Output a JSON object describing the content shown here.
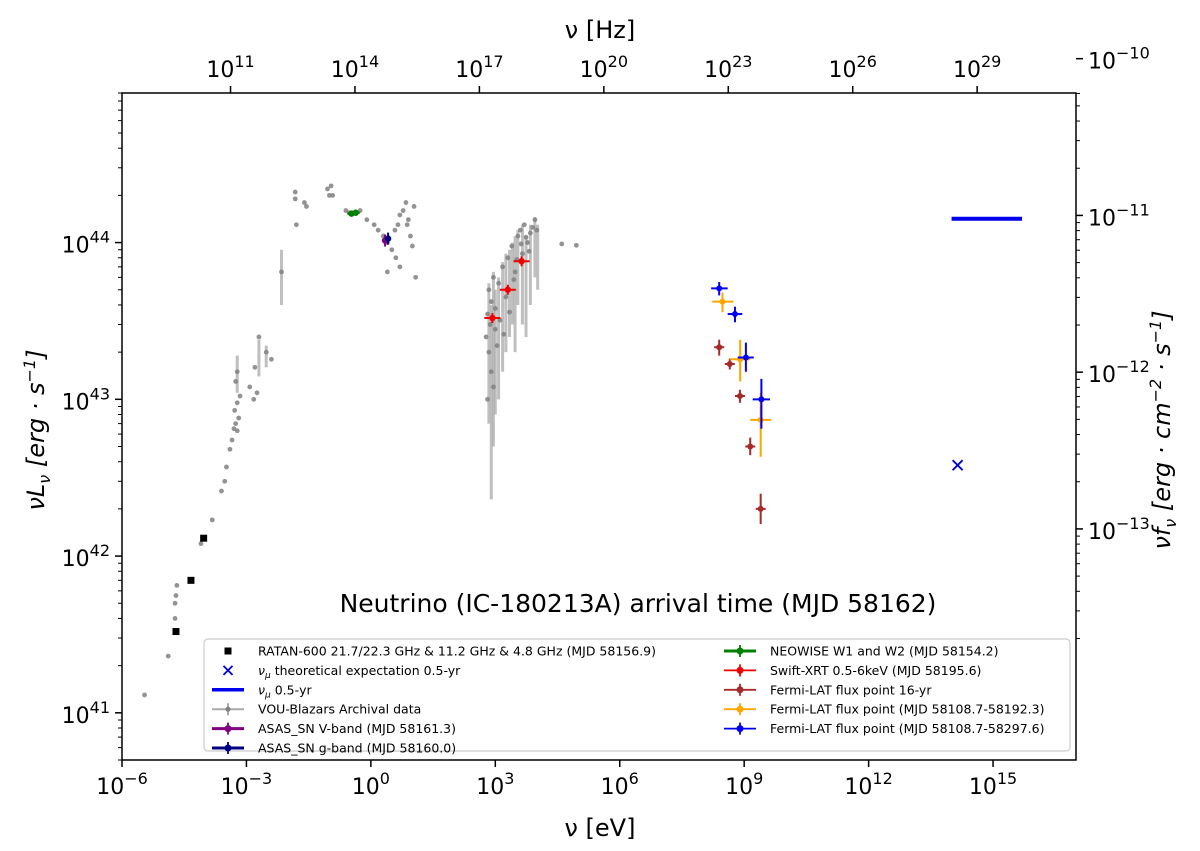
{
  "chart_data": {
    "type": "scatter",
    "annotation": "Neutrino (IC-180213A) arrival time (MJD 58162)",
    "axes": {
      "bottom": {
        "label": "ν [eV]",
        "scale": "log",
        "lim": [
          1e-06,
          1e+17
        ],
        "ticks": [
          {
            "base": "10",
            "exp": "−6",
            "value": 1e-06
          },
          {
            "base": "10",
            "exp": "−3",
            "value": 0.001
          },
          {
            "base": "10",
            "exp": "0",
            "value": 1
          },
          {
            "base": "10",
            "exp": "3",
            "value": 1000.0
          },
          {
            "base": "10",
            "exp": "6",
            "value": 1000000.0
          },
          {
            "base": "10",
            "exp": "9",
            "value": 1000000000.0
          },
          {
            "base": "10",
            "exp": "12",
            "value": 1000000000000.0
          },
          {
            "base": "10",
            "exp": "15",
            "value": 1000000000000000.0
          }
        ]
      },
      "top": {
        "label": "ν [Hz]",
        "scale": "log",
        "ticks": [
          {
            "base": "10",
            "exp": "11",
            "value": 100000000000.0
          },
          {
            "base": "10",
            "exp": "14",
            "value": 100000000000000.0
          },
          {
            "base": "10",
            "exp": "17",
            "value": 1e+17
          },
          {
            "base": "10",
            "exp": "20",
            "value": 1e+20
          },
          {
            "base": "10",
            "exp": "23",
            "value": 1e+23
          },
          {
            "base": "10",
            "exp": "26",
            "value": 1e+26
          },
          {
            "base": "10",
            "exp": "29",
            "value": 1e+29
          }
        ]
      },
      "left": {
        "label_main": "νL",
        "label_sub": "ν",
        "label_unit": "[erg · s",
        "label_unit_exp": "−1",
        "label_close": "]",
        "scale": "log",
        "lim": [
          5e+40,
          9e+44
        ],
        "ticks": [
          {
            "base": "10",
            "exp": "41",
            "value": 1e+41
          },
          {
            "base": "10",
            "exp": "42",
            "value": 1e+42
          },
          {
            "base": "10",
            "exp": "43",
            "value": 1e+43
          },
          {
            "base": "10",
            "exp": "44",
            "value": 1e+44
          }
        ]
      },
      "right": {
        "label_main": "νf",
        "label_sub": "ν",
        "label_unit": "[erg · cm",
        "label_unit_exp1": "−2",
        "label_mid": " · s",
        "label_unit_exp2": "−1",
        "label_close": "]",
        "scale": "log",
        "ticks": [
          {
            "base": "10",
            "exp": "−13",
            "value": 1e-13
          },
          {
            "base": "10",
            "exp": "−12",
            "value": 1e-12
          },
          {
            "base": "10",
            "exp": "−11",
            "value": 1e-11
          },
          {
            "base": "10",
            "exp": "−10",
            "value": 1e-10
          }
        ]
      }
    },
    "legend": {
      "placement": "lower-center",
      "columns": [
        [
          {
            "key": "ratan",
            "label": "RATAN-600 21.7/22.3 GHz & 11.2 GHz & 4.8 GHz (MJD 58156.9)"
          },
          {
            "key": "numu_theory",
            "label_pre": "ν",
            "label_sub": "μ",
            "label_post": " theoretical expectation 0.5-yr"
          },
          {
            "key": "numu_line",
            "label_pre": "ν",
            "label_sub": "μ",
            "label_post": " 0.5-yr"
          },
          {
            "key": "vou",
            "label": "VOU-Blazars Archival data"
          },
          {
            "key": "asas_v",
            "label": "ASAS_SN V-band (MJD 58161.3)"
          },
          {
            "key": "asas_g",
            "label": "ASAS_SN g-band (MJD 58160.0)"
          }
        ],
        [
          {
            "key": "neowise",
            "label": "NEOWISE W1 and W2 (MJD 58154.2)"
          },
          {
            "key": "swift",
            "label": "Swift-XRT 0.5-6keV (MJD 58195.6)"
          },
          {
            "key": "fermi16",
            "label": "Fermi-LAT flux point 16-yr"
          },
          {
            "key": "fermi_orange",
            "label": "Fermi-LAT flux point (MJD 58108.7-58192.3)"
          },
          {
            "key": "fermi_blue",
            "label": "Fermi-LAT flux point (MJD 58108.7-58297.6)"
          }
        ]
      ]
    },
    "series": {
      "ratan": {
        "color": "#000000",
        "marker": "square",
        "points": [
          [
            2e-05,
            3.3e+41
          ],
          [
            4.6e-05,
            7e+41
          ],
          [
            9.3e-05,
            1.3e+42
          ]
        ]
      },
      "numu_theory": {
        "color": "#0000cc",
        "marker": "x",
        "points": [
          [
            140000000000000.0,
            3.8e+42
          ]
        ]
      },
      "numu_line": {
        "color": "#0000ee",
        "x_range": [
          100000000000000.0,
          5000000000000000.0
        ],
        "y": 1.42e+44
      },
      "vou": {
        "color": "#808080",
        "marker": "dot",
        "points": [
          [
            3.5e-06,
            1.3e+41
          ],
          [
            1.3e-05,
            2.3e+41
          ],
          [
            1.9e-05,
            4e+41
          ],
          [
            1.9e-05,
            5e+41
          ],
          [
            2e-05,
            5.6e+41
          ],
          [
            2.1e-05,
            6.5e+41
          ],
          [
            8e-05,
            1.2e+42
          ],
          [
            0.00015,
            1.7e+42
          ],
          [
            0.00025,
            2.6e+42
          ],
          [
            0.0003,
            3e+42
          ],
          [
            0.00033,
            3.7e+42
          ],
          [
            0.0004,
            4.8e+42
          ],
          [
            0.00045,
            5.5e+42
          ],
          [
            0.0005,
            6.5e+42
          ],
          [
            0.00055,
            7e+42
          ],
          [
            0.0006,
            6.3e+42
          ],
          [
            0.00065,
            7.6e+42
          ],
          [
            0.00052,
            8.5e+42
          ],
          [
            0.0006,
            9.5e+42
          ],
          [
            0.0007,
            1.05e+43
          ],
          [
            0.00055,
            1.3e+43
          ],
          [
            0.0006,
            1.5e+43
          ],
          [
            0.0012,
            1.2e+43
          ],
          [
            0.0015,
            1e+43
          ],
          [
            0.0018,
            1.1e+43
          ],
          [
            0.0016,
            1.6e+43
          ],
          [
            0.002,
            2.5e+43
          ],
          [
            0.003,
            2e+43
          ],
          [
            0.004,
            1.8e+43
          ],
          [
            0.007,
            6.5e+43
          ],
          [
            0.015,
            2.1e+44
          ],
          [
            0.016,
            1.3e+44
          ],
          [
            0.015,
            1.9e+44
          ],
          [
            0.025,
            1.8e+44
          ],
          [
            0.028,
            1.7e+44
          ],
          [
            0.09,
            2.2e+44
          ],
          [
            0.1,
            2e+44
          ],
          [
            0.11,
            2.3e+44
          ],
          [
            0.12,
            2e+44
          ],
          [
            0.25,
            1.6e+44
          ],
          [
            0.3,
            1.55e+44
          ],
          [
            0.55,
            1.6e+44
          ],
          [
            0.8,
            1.4e+44
          ],
          [
            1.2,
            1.3e+44
          ],
          [
            1.5,
            1.2e+44
          ],
          [
            2.0,
            1.1e+44
          ],
          [
            2.5,
            1e+44
          ],
          [
            3.2,
            9e+43
          ],
          [
            3.8,
            1.2e+44
          ],
          [
            4.5,
            1.3e+44
          ],
          [
            5.0,
            1.5e+44
          ],
          [
            6.0,
            1.6e+44
          ],
          [
            7.0,
            1.8e+44
          ],
          [
            8.0,
            1.4e+44
          ],
          [
            9.0,
            1.1e+44
          ],
          [
            10.0,
            9.5e+43
          ],
          [
            4.0,
            8e+43
          ],
          [
            5.0,
            7e+43
          ],
          [
            2.5,
            6.5e+43
          ],
          [
            12.0,
            6e+43
          ],
          [
            11.0,
            1.7e+44
          ],
          [
            7.5,
            1.3e+44
          ],
          [
            600.0,
            2.5e+43
          ],
          [
            650.0,
            3.5e+43
          ],
          [
            700.0,
            5e+43
          ],
          [
            800.0,
            4.2e+43
          ],
          [
            900.0,
            6e+43
          ],
          [
            1000.0,
            3.8e+43
          ],
          [
            1200.0,
            5.5e+43
          ],
          [
            1500.0,
            7e+43
          ],
          [
            1800.0,
            4.5e+43
          ],
          [
            2000.0,
            8e+43
          ],
          [
            2500.0,
            9.5e+43
          ],
          [
            3000.0,
            6.5e+43
          ],
          [
            3500.0,
            1.1e+44
          ],
          [
            4000.0,
            1.2e+44
          ],
          [
            4500.0,
            8.5e+43
          ],
          [
            5000.0,
            1.3e+44
          ],
          [
            6000.0,
            1e+44
          ],
          [
            7000.0,
            1.15e+44
          ],
          [
            8000.0,
            1.25e+44
          ],
          [
            9000.0,
            1.4e+44
          ],
          [
            10000.0,
            1.2e+44
          ],
          [
            700.0,
            2e+43
          ],
          [
            800.0,
            1.5e+43
          ],
          [
            900.0,
            1.2e+43
          ],
          [
            1000.0,
            2.8e+43
          ],
          [
            1300.0,
            3.2e+43
          ],
          [
            1600.0,
            2.6e+43
          ],
          [
            2200.0,
            3.6e+43
          ],
          [
            2800.0,
            5.8e+43
          ],
          [
            3300.0,
            7.8e+43
          ],
          [
            650.0,
            1e+43
          ],
          [
            750.0,
            3e+43
          ],
          [
            1100.0,
            2.2e+43
          ],
          [
            4200.0,
            9.8e+43
          ],
          [
            5500.0,
            1.08e+44
          ],
          [
            6500.0,
            8.8e+43
          ],
          [
            40000.0,
            9.8e+43
          ],
          [
            90000.0,
            9.6e+43
          ]
        ],
        "bars": [
          [
            0.007,
            4e+43,
            9e+43
          ],
          [
            0.0006,
            1.1e+43,
            1.9e+43
          ],
          [
            0.002,
            1.4e+43,
            2.4e+43
          ],
          [
            0.003,
            1.6e+43,
            2.2e+43
          ],
          [
            700.0,
            7e+42,
            5.5e+43
          ],
          [
            800.0,
            2.3e+42,
            4e+43
          ],
          [
            900.0,
            5e+42,
            6.5e+43
          ],
          [
            1000.0,
            8e+42,
            5e+43
          ],
          [
            1200.0,
            1e+43,
            6e+43
          ],
          [
            1500.0,
            1.5e+43,
            7.5e+43
          ],
          [
            1800.0,
            2e+43,
            8.5e+43
          ],
          [
            2200.0,
            2.5e+43,
            9e+43
          ],
          [
            2600.0,
            3e+43,
            1e+44
          ],
          [
            3000.0,
            2e+43,
            1.1e+44
          ],
          [
            3500.0,
            4e+43,
            1.2e+44
          ],
          [
            4500.0,
            3e+43,
            1.3e+44
          ],
          [
            5500.0,
            2.5e+43,
            1.1e+44
          ],
          [
            7000.0,
            4e+43,
            1.3e+44
          ],
          [
            9000.0,
            6e+43,
            1.45e+44
          ],
          [
            10500.0,
            5e+43,
            1.3e+44
          ]
        ]
      },
      "asas_v": {
        "color": "#800080",
        "points": [
          [
            2.2,
            1.03e+44
          ]
        ]
      },
      "asas_g": {
        "color": "#000080",
        "points": [
          [
            2.6,
            1.06e+44
          ]
        ]
      },
      "neowise": {
        "color": "#008000",
        "points": [
          [
            0.34,
            1.53e+44
          ],
          [
            0.43,
            1.55e+44
          ]
        ]
      },
      "swift": {
        "color": "#ee0000",
        "xerr": true,
        "points": [
          [
            850.0,
            3.3e+43
          ],
          [
            2000.0,
            5e+43
          ],
          [
            4300.0,
            7.6e+43
          ]
        ]
      },
      "fermi16": {
        "color": "#a52a2a",
        "points": [
          [
            250000000.0,
            2.15e+43
          ],
          [
            450000000.0,
            1.68e+43
          ],
          [
            790000000.0,
            1.05e+43
          ],
          [
            1400000000.0,
            5e+42
          ],
          [
            2500000000.0,
            2e+42
          ]
        ],
        "yerr": [
          [
            1.9e+43,
            2.4e+43
          ],
          [
            1.55e+43,
            1.82e+43
          ],
          [
            9.5e+42,
            1.15e+43
          ],
          [
            4.4e+42,
            5.7e+42
          ],
          [
            1.6e+42,
            2.5e+42
          ]
        ]
      },
      "fermi_orange": {
        "color": "#ffa500",
        "points": [
          [
            300000000.0,
            4.2e+43
          ],
          [
            800000000.0,
            1.8e+43
          ],
          [
            2500000000.0,
            7.4e+42
          ]
        ],
        "xerr": [
          [
            170000000.0,
            550000000.0
          ],
          [
            450000000.0,
            1400000000.0
          ],
          [
            1400000000.0,
            4500000000.0
          ]
        ],
        "yerr": [
          [
            3.6e+43,
            4.8e+43
          ],
          [
            1.3e+43,
            2.4e+43
          ],
          [
            4.3e+42,
            1.1e+43
          ]
        ]
      },
      "fermi_blue": {
        "color": "#0000ee",
        "points": [
          [
            250000000.0,
            5.1e+43
          ],
          [
            600000000.0,
            3.5e+43
          ],
          [
            1100000000.0,
            1.85e+43
          ],
          [
            2600000000.0,
            1e+43
          ]
        ],
        "xerr": [
          [
            160000000.0,
            400000000.0
          ],
          [
            400000000.0,
            900000000.0
          ],
          [
            700000000.0,
            1700000000.0
          ],
          [
            1600000000.0,
            4200000000.0
          ]
        ],
        "yerr": [
          [
            4.6e+43,
            5.6e+43
          ],
          [
            3.1e+43,
            3.9e+43
          ],
          [
            1.5e+43,
            2.3e+43
          ],
          [
            6.5e+42,
            1.35e+43
          ]
        ]
      }
    }
  }
}
